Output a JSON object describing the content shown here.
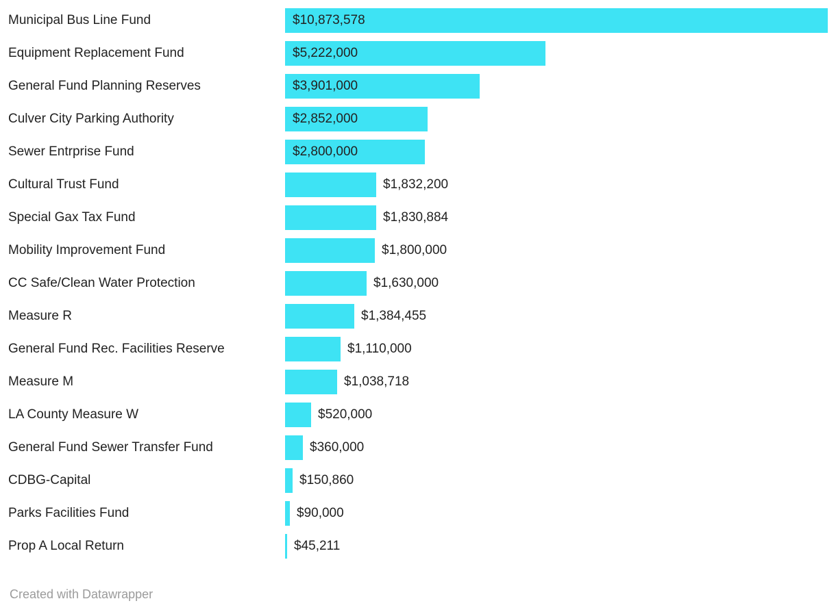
{
  "chart_data": {
    "type": "bar",
    "orientation": "horizontal",
    "title": "",
    "xlabel": "",
    "ylabel": "",
    "grid": false,
    "legend": null,
    "xlim": [
      0,
      10873578
    ],
    "categories": [
      "Municipal Bus Line Fund",
      "Equipment Replacement Fund",
      "General Fund Planning Reserves",
      "Culver City Parking Authority",
      "Sewer Entrprise Fund",
      "Cultural Trust Fund",
      "Special Gax Tax Fund",
      "Mobility Improvement Fund",
      "CC Safe/Clean Water Protection",
      "Measure R",
      "General Fund Rec. Facilities Reserve",
      "Measure M",
      "LA County Measure W",
      "General Fund Sewer Transfer Fund",
      "CDBG-Capital",
      "Parks Facilities Fund",
      "Prop A Local Return"
    ],
    "values": [
      10873578,
      5222000,
      3901000,
      2852000,
      2800000,
      1832200,
      1830884,
      1800000,
      1630000,
      1384455,
      1110000,
      1038718,
      520000,
      360000,
      150860,
      90000,
      45211
    ],
    "value_labels": [
      "$10,873,578",
      "$5,222,000",
      "$3,901,000",
      "$2,852,000",
      "$2,800,000",
      "$1,832,200",
      "$1,830,884",
      "$1,800,000",
      "$1,630,000",
      "$1,384,455",
      "$1,110,000",
      "$1,038,718",
      "$520,000",
      "$360,000",
      "$150,860",
      "$90,000",
      "$45,211"
    ]
  },
  "colors": {
    "bar": "#3ee3f4",
    "label": "#222222",
    "credit": "#9b9b9b",
    "background": "#ffffff"
  },
  "footer": {
    "credit": "Created with Datawrapper"
  }
}
